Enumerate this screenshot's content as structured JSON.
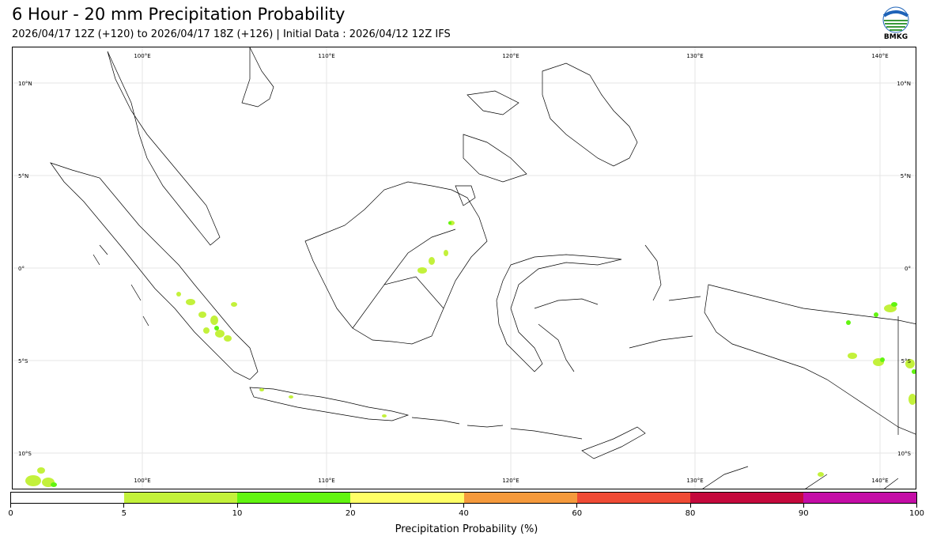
{
  "header": {
    "title": "6 Hour - 20 mm Precipitation Probability",
    "subtitle": "2026/04/17 12Z (+120) to 2026/04/17 18Z (+126) | Initial Data : 2026/04/12 12Z IFS",
    "logo_text": "BMKG"
  },
  "map": {
    "lon_labels": [
      "100°E",
      "110°E",
      "120°E",
      "130°E",
      "140°E"
    ],
    "lat_labels": [
      "10°N",
      "5°N",
      "0°",
      "5°S",
      "10°S"
    ]
  },
  "colorbar": {
    "title": "Precipitation Probability (%)",
    "ticks": [
      "0",
      "5",
      "10",
      "20",
      "40",
      "60",
      "80",
      "90",
      "100"
    ],
    "colors": [
      "#ffffff",
      "#c3f13b",
      "#62f410",
      "#ffff66",
      "#f59a3c",
      "#ef4b35",
      "#c4093c",
      "#c40da6"
    ]
  }
}
